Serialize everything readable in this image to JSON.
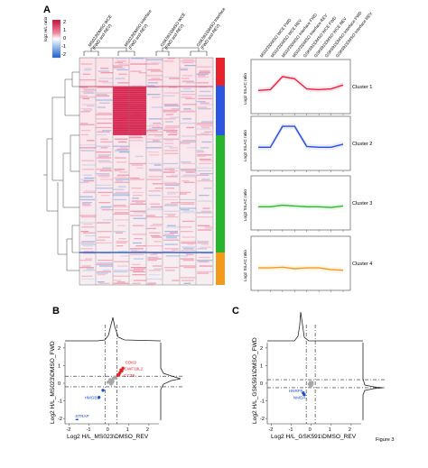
{
  "panels": {
    "A": {
      "label": "A",
      "colorbar": {
        "title": "log2 H/L ratio",
        "ticks": [
          "2",
          "1",
          "0",
          "-1",
          "-2"
        ]
      },
      "columns": [
        "MS023\\DMSO WCE\n(FWD and REV)",
        "MS023\\DMSO Interface\n(FWD and REV)",
        "GSK591\\DMSO WCE\n(FWD and REV)",
        "GSK591\\DMSO Interface\n(FWD and REV)"
      ],
      "cluster_colors": [
        "#e8212a",
        "#2c55e0",
        "#27b52c",
        "#f39a1c"
      ],
      "profile_headers": [
        "MS023\\DMSO WCE FWD",
        "MS023\\DMSO WCE REV",
        "MS023\\DMSO Interface FWD",
        "MS023\\DMSO Interface REV",
        "GSK591\\DMSO WCE FWD",
        "GSK591\\DMSO WCE REV",
        "GSK591\\DMSO Interface FWD",
        "GSK591\\DMSO Interface REV"
      ],
      "profiles": [
        {
          "label": "Cluster 1",
          "ylabel": "Log2 SILAC ratio",
          "color": "#e8213f"
        },
        {
          "label": "Cluster 2",
          "ylabel": "Log2 SILAC ratio",
          "color": "#2c4fd8"
        },
        {
          "label": "Cluster 3",
          "ylabel": "Log2 SILAC ratio",
          "color": "#2fb52f"
        },
        {
          "label": "Cluster 4",
          "ylabel": "Log2 SILAC ratio",
          "color": "#f39a1c"
        }
      ]
    },
    "B": {
      "label": "B",
      "xlabel": "Log2 H/L_MS023\\DMSO_REV",
      "ylabel": "Log2 H/L_MS023\\DMSO_FWD",
      "x_ticks": [
        "-2",
        "-1",
        "0",
        "1",
        "2"
      ],
      "y_ticks": [
        "-2",
        "-1",
        "0",
        "1",
        "2"
      ],
      "point_labels": [
        "CDK9",
        "CWF19L2",
        "CCT6",
        "HMGB1",
        "STRAP"
      ],
      "colors": {
        "up": "#e31e24",
        "down": "#1f4fd1",
        "neutral": "#a8a8a8"
      }
    },
    "C": {
      "label": "C",
      "xlabel": "Log2 H/L_GSK591\\DMSO_REV",
      "ylabel": "Log2 H/L_GSK591\\DMSO_FWD",
      "x_ticks": [
        "-2",
        "-1",
        "0",
        "1",
        "2"
      ],
      "y_ticks": [
        "-2",
        "-1",
        "0",
        "1",
        "2"
      ],
      "point_labels": [
        "HNRPF",
        "NMDA"
      ],
      "colors": {
        "down": "#1f4fd1",
        "neutral": "#a8a8a8"
      }
    }
  },
  "figure_label": "Figure 3",
  "chart_data": [
    {
      "type": "line",
      "title": "Cluster 1",
      "ylabel": "Log2 SILAC ratio",
      "categories": [
        "MS023\\DMSO WCE FWD",
        "MS023\\DMSO WCE REV",
        "MS023\\DMSO Interface FWD",
        "MS023\\DMSO Interface REV",
        "GSK591\\DMSO WCE FWD",
        "GSK591\\DMSO WCE REV",
        "GSK591\\DMSO Interface FWD",
        "GSK591\\DMSO Interface REV"
      ],
      "values": [
        0.0,
        0.05,
        0.9,
        0.75,
        0.1,
        0.05,
        0.1,
        0.35
      ],
      "ylim": [
        -1.5,
        2.0
      ]
    },
    {
      "type": "line",
      "title": "Cluster 2",
      "ylabel": "Log2 SILAC ratio",
      "categories": [
        "MS023\\DMSO WCE FWD",
        "MS023\\DMSO WCE REV",
        "MS023\\DMSO Interface FWD",
        "MS023\\DMSO Interface REV",
        "GSK591\\DMSO WCE FWD",
        "GSK591\\DMSO WCE REV",
        "GSK591\\DMSO Interface FWD",
        "GSK591\\DMSO Interface REV"
      ],
      "values": [
        0.0,
        0.0,
        1.35,
        1.35,
        0.05,
        0.0,
        0.0,
        0.2
      ],
      "ylim": [
        -1.5,
        2.0
      ]
    },
    {
      "type": "line",
      "title": "Cluster 3",
      "ylabel": "Log2 SILAC ratio",
      "categories": [
        "MS023\\DMSO WCE FWD",
        "MS023\\DMSO WCE REV",
        "MS023\\DMSO Interface FWD",
        "MS023\\DMSO Interface REV",
        "GSK591\\DMSO WCE FWD",
        "GSK591\\DMSO WCE REV",
        "GSK591\\DMSO Interface FWD",
        "GSK591\\DMSO Interface REV"
      ],
      "values": [
        0.0,
        0.0,
        0.1,
        0.05,
        0.0,
        0.0,
        -0.05,
        0.05
      ],
      "ylim": [
        -1.5,
        2.0
      ]
    },
    {
      "type": "line",
      "title": "Cluster 4",
      "ylabel": "Log2 SILAC ratio",
      "categories": [
        "MS023\\DMSO WCE FWD",
        "MS023\\DMSO WCE REV",
        "MS023\\DMSO Interface FWD",
        "MS023\\DMSO Interface REV",
        "GSK591\\DMSO WCE FWD",
        "GSK591\\DMSO WCE REV",
        "GSK591\\DMSO Interface FWD",
        "GSK591\\DMSO Interface REV"
      ],
      "values": [
        -0.05,
        -0.05,
        0.0,
        -0.1,
        -0.05,
        -0.05,
        -0.15,
        -0.2
      ],
      "ylim": [
        -1.5,
        2.0
      ]
    },
    {
      "type": "scatter",
      "title": "B",
      "xlabel": "Log2 H/L_MS023\\DMSO_REV",
      "ylabel": "Log2 H/L_MS023\\DMSO_FWD",
      "xlim": [
        -2.2,
        2.5
      ],
      "ylim": [
        -2.3,
        2.3
      ],
      "cutoffs": {
        "x": [
          -0.2,
          0.4
        ],
        "y": [
          -0.2,
          0.4
        ]
      },
      "series": [
        {
          "points": [
            [
              0.6,
              0.75
            ],
            [
              0.55,
              0.6
            ],
            [
              0.5,
              0.5
            ],
            [
              0.65,
              0.7
            ],
            [
              0.45,
              0.45
            ],
            [
              0.7,
              0.85
            ]
          ]
        },
        {
          "points": [
            [
              -0.5,
              -0.8
            ],
            [
              -1.6,
              -2.1
            ],
            [
              -0.3,
              -0.4
            ]
          ]
        },
        {
          "points": [
            [
              0.05,
              0.05
            ],
            [
              0.1,
              0.15
            ],
            [
              0.2,
              0.25
            ],
            [
              0.0,
              0.1
            ],
            [
              0.15,
              0.0
            ],
            [
              -0.05,
              0.05
            ],
            [
              0.25,
              0.3
            ],
            [
              0.3,
              0.35
            ],
            [
              0.1,
              -0.05
            ],
            [
              0.05,
              0.2
            ],
            [
              0.2,
              0.1
            ],
            [
              0.35,
              0.3
            ]
          ]
        }
      ],
      "labeled_points": [
        {
          "label": "CDK9",
          "x": 0.72,
          "y": 0.95
        },
        {
          "label": "CWF19L2",
          "x": 0.68,
          "y": 0.78
        },
        {
          "label": "CCT6",
          "x": 0.66,
          "y": 0.62
        },
        {
          "label": "HMGB1",
          "x": -0.5,
          "y": -0.8
        },
        {
          "label": "STRAP",
          "x": -1.6,
          "y": -2.1
        }
      ]
    },
    {
      "type": "scatter",
      "title": "C",
      "xlabel": "Log2 H/L_GSK591\\DMSO_REV",
      "ylabel": "Log2 H/L_GSK591\\DMSO_FWD",
      "xlim": [
        -2.2,
        2.5
      ],
      "ylim": [
        -2.3,
        2.3
      ],
      "cutoffs": {
        "x": [
          -0.25,
          0.2
        ],
        "y": [
          -0.25,
          0.2
        ]
      },
      "series": [
        {
          "points": [
            [
              -0.4,
              -0.55
            ],
            [
              -0.35,
              -0.65
            ]
          ]
        },
        {
          "points": [
            [
              0.0,
              0.0
            ],
            [
              0.05,
              -0.05
            ],
            [
              -0.05,
              0.05
            ],
            [
              0.0,
              -0.1
            ],
            [
              -0.1,
              -0.05
            ],
            [
              0.05,
              0.05
            ],
            [
              0.0,
              -0.15
            ],
            [
              -0.05,
              -0.2
            ]
          ]
        }
      ],
      "labeled_points": [
        {
          "label": "HNRPF",
          "x": -0.4,
          "y": -0.55
        },
        {
          "label": "NMDA",
          "x": -0.35,
          "y": -0.65
        }
      ]
    }
  ]
}
